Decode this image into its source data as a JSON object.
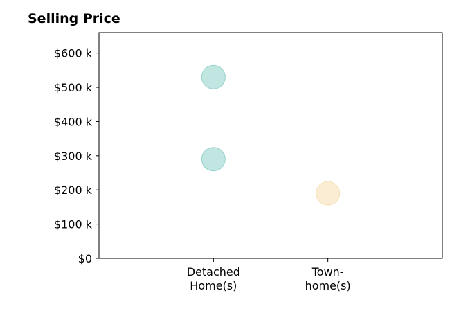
{
  "chart_data": {
    "type": "scatter",
    "title": "Selling Price",
    "xlabel": "",
    "ylabel": "",
    "categories": [
      "Detached\nHome(s)",
      "Town-\nhome(s)"
    ],
    "y_ticks": [
      "$0",
      "$100 k",
      "$200 k",
      "$300 k",
      "$400 k",
      "$500 k",
      "$600 k"
    ],
    "y_tick_values": [
      0,
      100,
      200,
      300,
      400,
      500,
      600
    ],
    "ylim": [
      0,
      660
    ],
    "xlim": [
      -1,
      2
    ],
    "grid": false,
    "series": [
      {
        "category": "Detached\nHome(s)",
        "color": "#8ecfc9",
        "values": [
          530,
          290
        ]
      },
      {
        "category": "Town-\nhome(s)",
        "color": "#f5dfb0",
        "values": [
          190
        ]
      }
    ]
  }
}
